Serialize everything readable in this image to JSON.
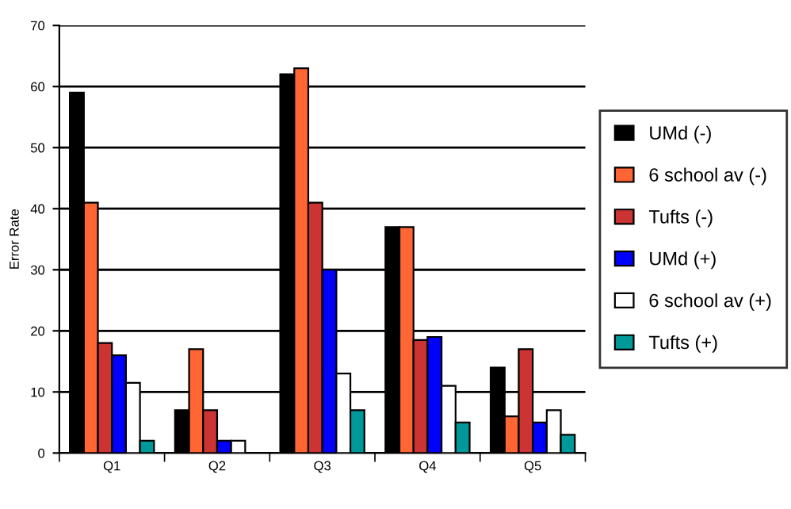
{
  "chart_data": {
    "type": "bar",
    "ylabel": "Error Rate",
    "categories": [
      "Q1",
      "Q2",
      "Q3",
      "Q4",
      "Q5"
    ],
    "series": [
      {
        "name": "UMd (-)",
        "color": "#000000",
        "values": [
          59,
          7,
          62,
          37,
          14
        ]
      },
      {
        "name": "6 school av (-)",
        "color": "#ff6633",
        "values": [
          41,
          17,
          63,
          37,
          6
        ]
      },
      {
        "name": "Tufts (-)",
        "color": "#cc3333",
        "values": [
          18,
          7,
          41,
          18.5,
          17
        ]
      },
      {
        "name": "UMd (+)",
        "color": "#0000ff",
        "values": [
          16,
          2,
          30,
          19,
          5
        ]
      },
      {
        "name": "6 school av (+)",
        "color": "#ffffff",
        "values": [
          11.5,
          2,
          13,
          11,
          7
        ]
      },
      {
        "name": "Tufts (+)",
        "color": "#009999",
        "values": [
          2,
          null,
          7,
          5,
          3
        ]
      }
    ],
    "ylim": [
      0,
      70
    ],
    "yticks": [
      0,
      10,
      20,
      30,
      40,
      50,
      60,
      70
    ],
    "grid": "y",
    "legend": "right"
  }
}
